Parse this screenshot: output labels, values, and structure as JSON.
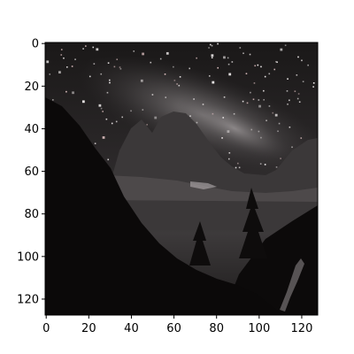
{
  "figure": {
    "type": "image",
    "pixel_grid": [
      128,
      128
    ],
    "x_ticks": [
      {
        "value": 0,
        "label": "0"
      },
      {
        "value": 20,
        "label": "20"
      },
      {
        "value": 40,
        "label": "40"
      },
      {
        "value": 60,
        "label": "60"
      },
      {
        "value": 80,
        "label": "80"
      },
      {
        "value": 100,
        "label": "100"
      },
      {
        "value": 120,
        "label": "120"
      }
    ],
    "y_ticks": [
      {
        "value": 0,
        "label": "0"
      },
      {
        "value": 20,
        "label": "20"
      },
      {
        "value": 40,
        "label": "40"
      },
      {
        "value": 60,
        "label": "60"
      },
      {
        "value": 80,
        "label": "80"
      },
      {
        "value": 100,
        "label": "100"
      },
      {
        "value": 120,
        "label": "120"
      }
    ],
    "x_range": [
      -0.5,
      127.5
    ],
    "y_range": [
      -0.5,
      127.5
    ],
    "y_axis_inverted": true,
    "colors": {
      "sky_dark": "#141314",
      "sky_mid": "#3a3738",
      "milky_way": "#8a8687",
      "peaks": "#3b3839",
      "slopes": "#0b0909",
      "star": "#f2eeee",
      "axis": "#000000",
      "background": "#ffffff"
    }
  }
}
